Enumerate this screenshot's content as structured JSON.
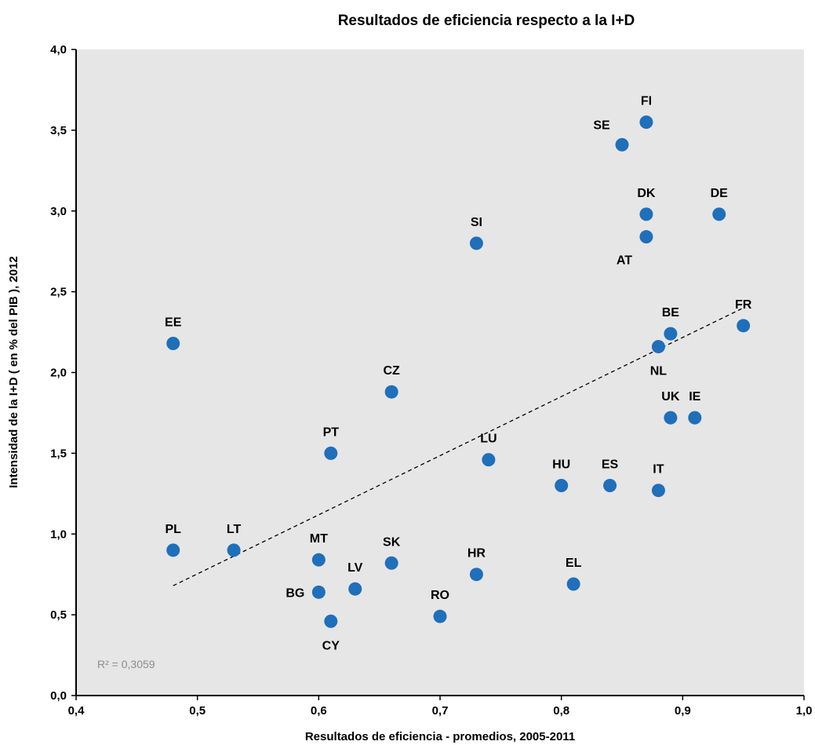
{
  "chart_data": {
    "type": "scatter",
    "title": "Resultados de eficiencia respecto a la I+D",
    "xlabel": "Resultados de eficiencia - promedios, 2005-2011",
    "ylabel": "Intensidad de la I+D ( en % del  PIB ), 2012",
    "xlim": [
      0.4,
      1.0
    ],
    "ylim": [
      0.0,
      4.0
    ],
    "x_ticks": [
      "0,4",
      "0,5",
      "0,6",
      "0,7",
      "0,8",
      "0,9",
      "1,0"
    ],
    "y_ticks": [
      "0,0",
      "0,5",
      "1,0",
      "1,5",
      "2,0",
      "2,5",
      "3,0",
      "3,5",
      "4,0"
    ],
    "grid": false,
    "plot_background": "#e6e6e6",
    "marker_color": "#1f6fba",
    "trendline": {
      "style": "dashed",
      "x": [
        0.48,
        0.95
      ],
      "y": [
        0.68,
        2.4
      ]
    },
    "r_squared_label": "R² = 0,3059",
    "points": [
      {
        "label": "FI",
        "x": 0.87,
        "y": 3.55,
        "pos": "above"
      },
      {
        "label": "SE",
        "x": 0.85,
        "y": 3.41,
        "pos": "above-left"
      },
      {
        "label": "DK",
        "x": 0.87,
        "y": 2.98,
        "pos": "above"
      },
      {
        "label": "DE",
        "x": 0.93,
        "y": 2.98,
        "pos": "above"
      },
      {
        "label": "AT",
        "x": 0.87,
        "y": 2.84,
        "pos": "below-left"
      },
      {
        "label": "SI",
        "x": 0.73,
        "y": 2.8,
        "pos": "above"
      },
      {
        "label": "EE",
        "x": 0.48,
        "y": 2.18,
        "pos": "above"
      },
      {
        "label": "FR",
        "x": 0.95,
        "y": 2.29,
        "pos": "above"
      },
      {
        "label": "BE",
        "x": 0.89,
        "y": 2.24,
        "pos": "above"
      },
      {
        "label": "NL",
        "x": 0.88,
        "y": 2.16,
        "pos": "below"
      },
      {
        "label": "CZ",
        "x": 0.66,
        "y": 1.88,
        "pos": "above"
      },
      {
        "label": "UK",
        "x": 0.89,
        "y": 1.72,
        "pos": "above"
      },
      {
        "label": "IE",
        "x": 0.91,
        "y": 1.72,
        "pos": "above"
      },
      {
        "label": "PT",
        "x": 0.61,
        "y": 1.5,
        "pos": "above"
      },
      {
        "label": "LU",
        "x": 0.74,
        "y": 1.46,
        "pos": "above"
      },
      {
        "label": "HU",
        "x": 0.8,
        "y": 1.3,
        "pos": "above"
      },
      {
        "label": "ES",
        "x": 0.84,
        "y": 1.3,
        "pos": "above"
      },
      {
        "label": "IT",
        "x": 0.88,
        "y": 1.27,
        "pos": "above"
      },
      {
        "label": "PL",
        "x": 0.48,
        "y": 0.9,
        "pos": "above"
      },
      {
        "label": "LT",
        "x": 0.53,
        "y": 0.9,
        "pos": "above"
      },
      {
        "label": "MT",
        "x": 0.6,
        "y": 0.84,
        "pos": "above"
      },
      {
        "label": "SK",
        "x": 0.66,
        "y": 0.82,
        "pos": "above"
      },
      {
        "label": "HR",
        "x": 0.73,
        "y": 0.75,
        "pos": "above"
      },
      {
        "label": "EL",
        "x": 0.81,
        "y": 0.69,
        "pos": "above"
      },
      {
        "label": "LV",
        "x": 0.63,
        "y": 0.66,
        "pos": "above"
      },
      {
        "label": "BG",
        "x": 0.6,
        "y": 0.64,
        "pos": "left"
      },
      {
        "label": "RO",
        "x": 0.7,
        "y": 0.49,
        "pos": "above"
      },
      {
        "label": "CY",
        "x": 0.61,
        "y": 0.46,
        "pos": "below"
      }
    ]
  }
}
